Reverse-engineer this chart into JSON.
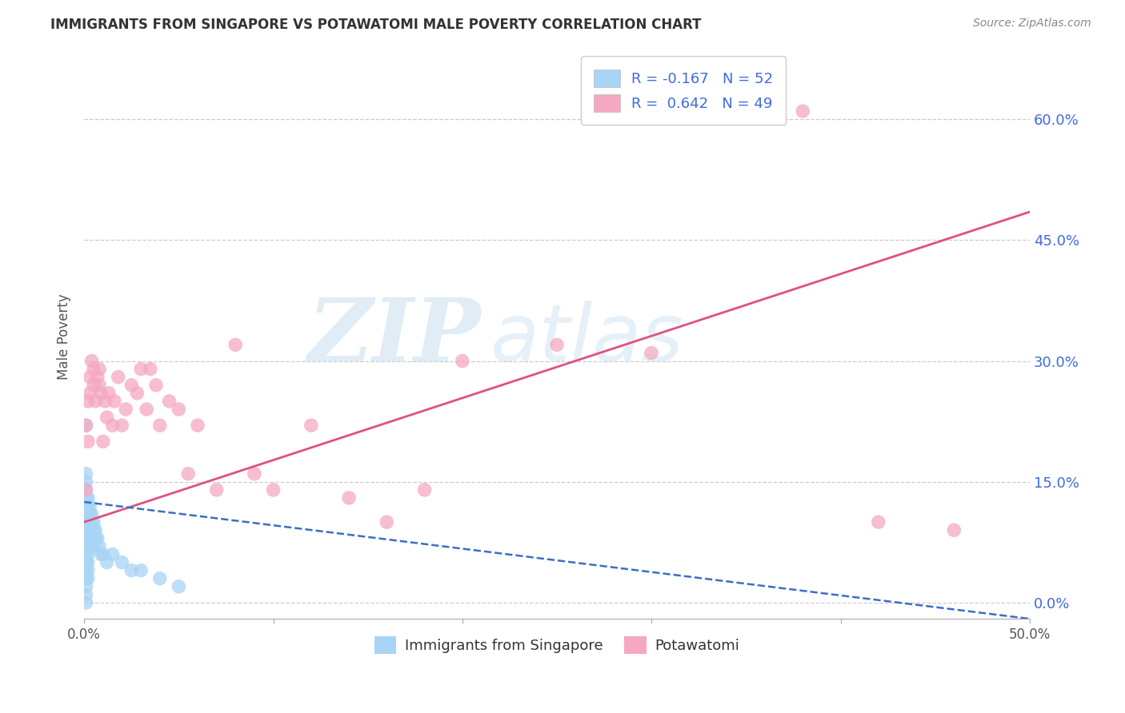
{
  "title": "IMMIGRANTS FROM SINGAPORE VS POTAWATOMI MALE POVERTY CORRELATION CHART",
  "source": "Source: ZipAtlas.com",
  "ylabel": "Male Poverty",
  "ytick_labels": [
    "0.0%",
    "15.0%",
    "30.0%",
    "45.0%",
    "60.0%"
  ],
  "ytick_values": [
    0.0,
    0.15,
    0.3,
    0.45,
    0.6
  ],
  "xlim": [
    0.0,
    0.5
  ],
  "ylim": [
    -0.02,
    0.68
  ],
  "legend_label1": "Immigrants from Singapore",
  "legend_label2": "Potawatomi",
  "R1": -0.167,
  "N1": 52,
  "R2": 0.642,
  "N2": 49,
  "color_blue": "#a8d4f5",
  "color_blue_line": "#3a6fc4",
  "color_pink": "#f5a8c0",
  "color_pink_line": "#e05080",
  "watermark_zip": "ZIP",
  "watermark_atlas": "atlas",
  "pink_line_x0": 0.0,
  "pink_line_y0": 0.1,
  "pink_line_x1": 0.5,
  "pink_line_y1": 0.485,
  "blue_line_x0": 0.0,
  "blue_line_y0": 0.125,
  "blue_line_x1": 0.5,
  "blue_line_y1": -0.02,
  "singapore_x": [
    0.001,
    0.001,
    0.001,
    0.001,
    0.001,
    0.001,
    0.001,
    0.001,
    0.001,
    0.001,
    0.001,
    0.001,
    0.001,
    0.001,
    0.001,
    0.001,
    0.002,
    0.002,
    0.002,
    0.002,
    0.002,
    0.002,
    0.002,
    0.002,
    0.002,
    0.002,
    0.003,
    0.003,
    0.003,
    0.003,
    0.003,
    0.004,
    0.004,
    0.004,
    0.005,
    0.005,
    0.005,
    0.006,
    0.006,
    0.007,
    0.008,
    0.009,
    0.01,
    0.012,
    0.015,
    0.02,
    0.025,
    0.03,
    0.04,
    0.05,
    0.001,
    0.001
  ],
  "singapore_y": [
    0.13,
    0.12,
    0.11,
    0.1,
    0.09,
    0.08,
    0.07,
    0.06,
    0.05,
    0.04,
    0.03,
    0.02,
    0.01,
    0.0,
    0.14,
    0.15,
    0.13,
    0.12,
    0.1,
    0.09,
    0.08,
    0.07,
    0.06,
    0.05,
    0.04,
    0.03,
    0.12,
    0.11,
    0.09,
    0.08,
    0.07,
    0.11,
    0.1,
    0.08,
    0.1,
    0.09,
    0.07,
    0.09,
    0.08,
    0.08,
    0.07,
    0.06,
    0.06,
    0.05,
    0.06,
    0.05,
    0.04,
    0.04,
    0.03,
    0.02,
    0.16,
    0.22
  ],
  "potawatomi_x": [
    0.001,
    0.001,
    0.002,
    0.002,
    0.003,
    0.003,
    0.004,
    0.005,
    0.005,
    0.006,
    0.007,
    0.008,
    0.008,
    0.009,
    0.01,
    0.011,
    0.012,
    0.013,
    0.015,
    0.016,
    0.018,
    0.02,
    0.022,
    0.025,
    0.028,
    0.03,
    0.033,
    0.035,
    0.038,
    0.04,
    0.045,
    0.05,
    0.055,
    0.06,
    0.07,
    0.08,
    0.09,
    0.1,
    0.12,
    0.14,
    0.16,
    0.18,
    0.2,
    0.25,
    0.3,
    0.35,
    0.38,
    0.42,
    0.46
  ],
  "potawatomi_y": [
    0.14,
    0.22,
    0.2,
    0.25,
    0.26,
    0.28,
    0.3,
    0.27,
    0.29,
    0.25,
    0.28,
    0.27,
    0.29,
    0.26,
    0.2,
    0.25,
    0.23,
    0.26,
    0.22,
    0.25,
    0.28,
    0.22,
    0.24,
    0.27,
    0.26,
    0.29,
    0.24,
    0.29,
    0.27,
    0.22,
    0.25,
    0.24,
    0.16,
    0.22,
    0.14,
    0.32,
    0.16,
    0.14,
    0.22,
    0.13,
    0.1,
    0.14,
    0.3,
    0.32,
    0.31,
    0.62,
    0.61,
    0.1,
    0.09
  ]
}
